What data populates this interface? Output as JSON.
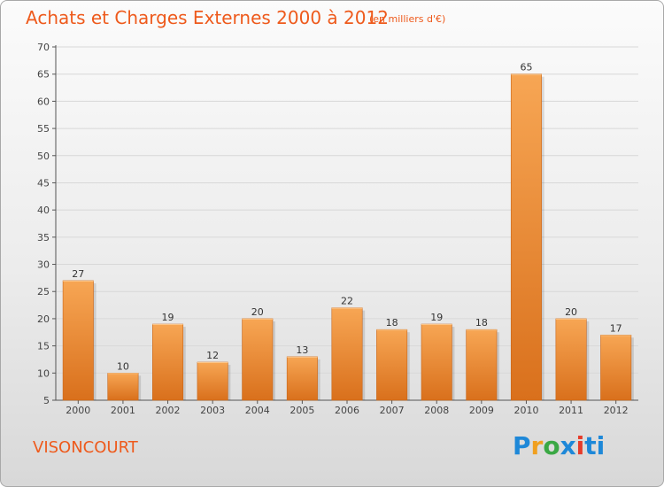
{
  "header": {
    "title": "Achats et Charges Externes 2000 à 2012",
    "unit": "(en milliers d'€)"
  },
  "footer": {
    "commune": "VISONCOURT",
    "logo_text": "Proxiti"
  },
  "colors": {
    "accent": "#ee5a1c",
    "bar_top": "#f7a654",
    "bar_bottom": "#d9701c",
    "axis": "#555555",
    "grid": "#d8d8d8"
  },
  "chart_data": {
    "type": "bar",
    "title": "Achats et Charges Externes 2000 à 2012",
    "subtitle": "(en milliers d'€)",
    "categories": [
      "2000",
      "2001",
      "2002",
      "2003",
      "2004",
      "2005",
      "2006",
      "2007",
      "2008",
      "2009",
      "2010",
      "2011",
      "2012"
    ],
    "values": [
      27,
      10,
      19,
      12,
      20,
      13,
      22,
      18,
      19,
      18,
      65,
      20,
      17
    ],
    "ylim": [
      5,
      70
    ],
    "yticks": [
      5,
      10,
      15,
      20,
      25,
      30,
      35,
      40,
      45,
      50,
      55,
      60,
      65,
      70
    ],
    "grid": true,
    "data_labels": true
  }
}
